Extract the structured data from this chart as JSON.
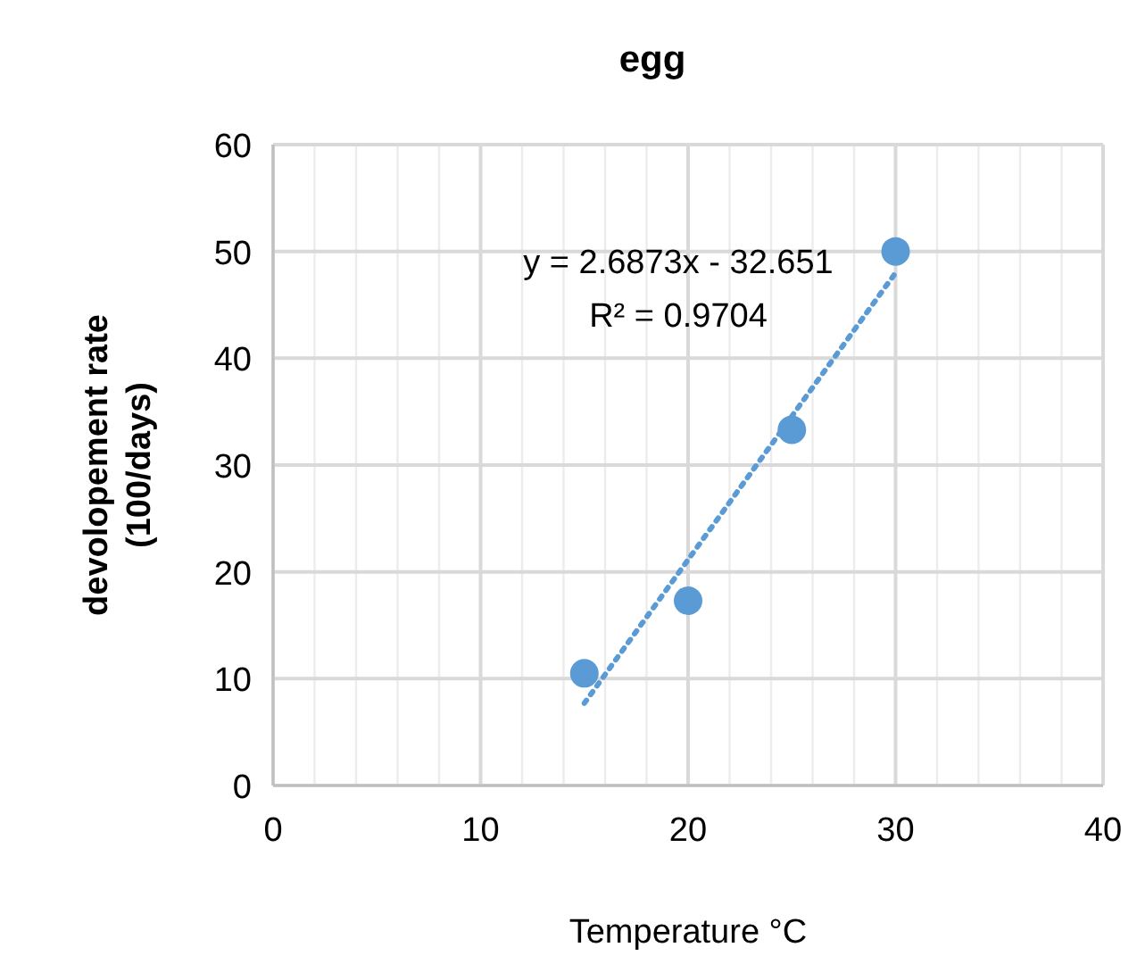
{
  "chart_data": {
    "type": "scatter",
    "title": "egg",
    "xlabel": "Temperature °C",
    "ylabel": "devolopement rate (100/days)",
    "xlim": [
      0,
      40
    ],
    "xticks": [
      0,
      {
        "value": 2,
        "label": null
      },
      {
        "value": 4,
        "label": null
      },
      {
        "value": 6,
        "label": null
      },
      {
        "value": 8,
        "label": null
      },
      10,
      {
        "value": 12,
        "label": null
      },
      {
        "value": 14,
        "label": null
      },
      {
        "value": 16,
        "label": null
      },
      {
        "value": 18,
        "label": null
      },
      20,
      {
        "value": 22,
        "label": null
      },
      {
        "value": 24,
        "label": null
      },
      {
        "value": 26,
        "label": null
      },
      {
        "value": 28,
        "label": null
      },
      30,
      {
        "value": 32,
        "label": null
      },
      {
        "value": 34,
        "label": null
      },
      {
        "value": 36,
        "label": null
      },
      {
        "value": 38,
        "label": null
      },
      40
    ],
    "ylim": [
      0,
      60
    ],
    "yticks": [
      0,
      10,
      20,
      30,
      40,
      50,
      60
    ],
    "grid": true,
    "series": [
      {
        "color": "#5b9bd5",
        "x": [
          15,
          20,
          25,
          30
        ],
        "values": [
          10.5,
          17.3,
          33.3,
          50
        ],
        "marker": "circle"
      },
      {
        "type": "line",
        "color": "#5b9bd5",
        "x": [
          15,
          30
        ],
        "values": [
          7.7,
          48
        ],
        "line_style": "dotted",
        "marker": "none"
      }
    ],
    "annotations": [
      "y = 2.6873x - 32.651",
      "R² = 0.9704"
    ]
  }
}
